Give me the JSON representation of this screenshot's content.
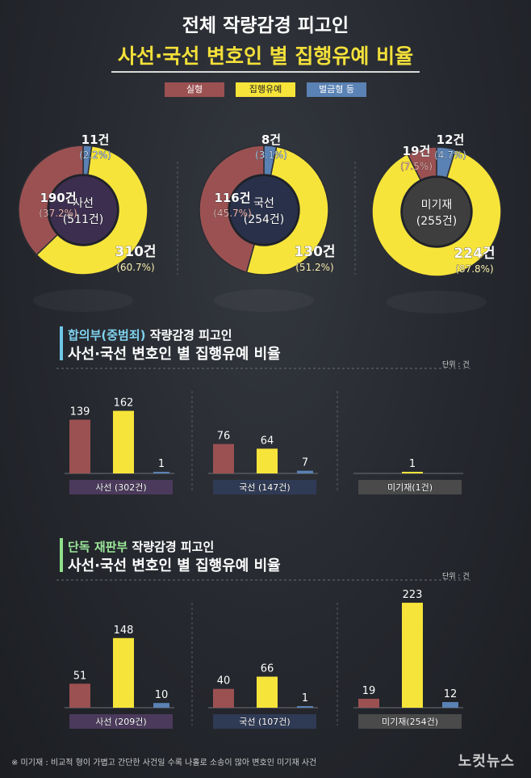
{
  "header": {
    "title_line1": "전체 작량감경 피고인",
    "title_line2": "사선·국선 변호인 별 집행유예 비율"
  },
  "legend": [
    {
      "label": "실형",
      "color": "#9b5152"
    },
    {
      "label": "집행유예",
      "color": "#f7e43a"
    },
    {
      "label": "벌금형 등",
      "color": "#5a82b4"
    }
  ],
  "colors": {
    "prison": "#9b5152",
    "probation": "#f7e43a",
    "fine": "#5a82b4",
    "cat_sasun": "#4b3a5c",
    "cat_guksun": "#2f3a55",
    "cat_migijae": "#4a4a4a"
  },
  "sections": {
    "hapui": {
      "highlight": "합의부(중범죄)",
      "rest": " 작량감경 피고인",
      "subtitle": "사선·국선 변호인 별 집행유예 비율",
      "unit": "단위 : 건"
    },
    "dandok": {
      "highlight": "단독 재판부",
      "rest": " 작량감경 피고인",
      "subtitle": "사선·국선 변호인 별 집행유예 비율",
      "unit": "단위 : 건"
    }
  },
  "chart_data": [
    {
      "type": "pie",
      "donuts": [
        {
          "center_name": "사선",
          "center_total": "(511건)",
          "slices": [
            {
              "series": "실형",
              "value": 190,
              "label": "190건",
              "pct": "(37.2%)"
            },
            {
              "series": "집행유예",
              "value": 310,
              "label": "310건",
              "pct": "(60.7%)"
            },
            {
              "series": "벌금형 등",
              "value": 11,
              "label": "11건",
              "pct": "(2.2%)"
            }
          ]
        },
        {
          "center_name": "국선",
          "center_total": "(254건)",
          "slices": [
            {
              "series": "실형",
              "value": 116,
              "label": "116건",
              "pct": "(45.7%)"
            },
            {
              "series": "집행유예",
              "value": 130,
              "label": "130건",
              "pct": "(51.2%)"
            },
            {
              "series": "벌금형 등",
              "value": 8,
              "label": "8건",
              "pct": "(3.1%)"
            }
          ]
        },
        {
          "center_name": "미기재",
          "center_total": "(255건)",
          "slices": [
            {
              "series": "실형",
              "value": 19,
              "label": "19건",
              "pct": "(7.5%)"
            },
            {
              "series": "집행유예",
              "value": 224,
              "label": "224건",
              "pct": "(87.8%)"
            },
            {
              "series": "벌금형 등",
              "value": 12,
              "label": "12건",
              "pct": "(4.7%)"
            }
          ]
        }
      ]
    },
    {
      "type": "bar",
      "title": "합의부(중범죄) 작량감경 피고인 사선·국선 변호인 별 집행유예 비율",
      "categories": [
        "사선 (302건)",
        "국선 (147건)",
        "미기재(1건)"
      ],
      "series": [
        {
          "name": "실형",
          "values": [
            139,
            76,
            null
          ]
        },
        {
          "name": "집행유예",
          "values": [
            162,
            64,
            1
          ]
        },
        {
          "name": "벌금형 등",
          "values": [
            1,
            7,
            null
          ]
        }
      ]
    },
    {
      "type": "bar",
      "title": "단독 재판부 작량감경 피고인 사선·국선 변호인 별 집행유예 비율",
      "categories": [
        "사선 (209건)",
        "국선 (107건)",
        "미기재(254건)"
      ],
      "series": [
        {
          "name": "실형",
          "values": [
            51,
            40,
            19
          ]
        },
        {
          "name": "집행유예",
          "values": [
            148,
            66,
            223
          ]
        },
        {
          "name": "벌금형 등",
          "values": [
            10,
            1,
            12
          ]
        }
      ]
    }
  ],
  "footer": {
    "note": "※ 미기재 : 비교적 형이 가볍고 간단한 사건일 수록 나홀로 소송이 많아 변호인 미기재 사건",
    "logo": "노컷뉴스"
  }
}
